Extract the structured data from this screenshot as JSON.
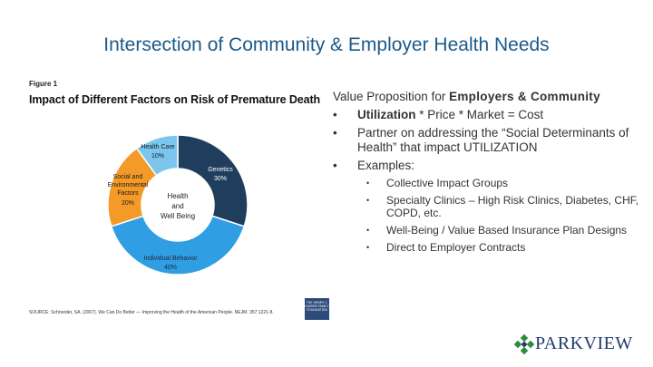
{
  "slide": {
    "title": "Intersection of Community & Employer Health Needs"
  },
  "figure": {
    "label": "Figure 1",
    "title": "Impact of Different Factors on Risk of Premature Death",
    "center_label": [
      "Health",
      "and",
      "Well Being"
    ],
    "segments": [
      {
        "name": "Genetics",
        "value": "30%",
        "color": "#1f3e5e"
      },
      {
        "name": "Individual Behavior",
        "value": "40%",
        "color": "#2f9ee2"
      },
      {
        "name": "Social and Environmental Factors",
        "value": "20%",
        "color": "#f39a28"
      },
      {
        "name": "Health Care",
        "value": "10%",
        "color": "#7cc6ee"
      }
    ],
    "source": "SOURCE: Schroeder, SA. (2007). We Can Do Better — Improving the Health of the American People. NEJM. 357:1221-8."
  },
  "logo_small": {
    "text": "THE HENRY J. KAISER FAMILY FOUNDATION"
  },
  "content": {
    "heading_prefix": "Value Proposition for ",
    "heading_bold": "Employers & Community",
    "bullets": [
      {
        "bold": "Utilization",
        "text": " * Price * Market = Cost"
      },
      {
        "bold": "",
        "text": "Partner on addressing the “Social Determinants of Health” that impact UTILIZATION"
      },
      {
        "bold": "",
        "text": "Examples:"
      }
    ],
    "sub_bullets": [
      "Collective Impact Groups",
      "Specialty Clinics – High Risk Clinics, Diabetes, CHF, COPD, etc.",
      "Well-Being / Value Based Insurance Plan Designs",
      "Direct to Employer Contracts"
    ]
  },
  "brand": {
    "name": "PARKVIEW",
    "color": "#1e3d6b",
    "accent": "#2e8b3e"
  }
}
